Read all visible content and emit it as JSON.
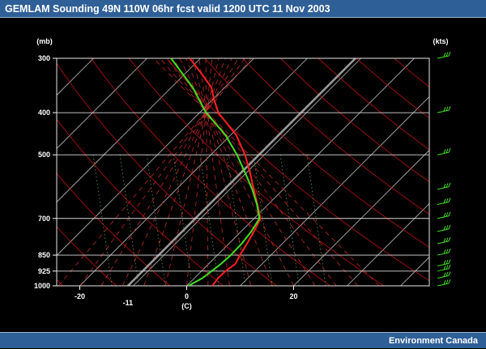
{
  "header": {
    "title": "GEMLAM Sounding 49N 110W 06hr fcst valid 1200 UTC  11 Nov 2003"
  },
  "footer": {
    "credit": "Environment Canada"
  },
  "chart_data": {
    "type": "line",
    "chart_kind": "skew-T log-p thermodynamic diagram",
    "title": "GEMLAM Sounding 49N 110W 06hr fcst valid 1200 UTC  11 Nov 2003",
    "y_axis": {
      "unit": "(mb)",
      "scale": "log",
      "ylim": [
        1000,
        300
      ],
      "tick_labels": [
        "300",
        "400",
        "500",
        "700",
        "850",
        "925",
        "1000"
      ]
    },
    "x_axis": {
      "unit": "(C)",
      "tick_labels": [
        "-20",
        "0",
        "20"
      ],
      "highlight_label": "-11",
      "highlight_value": -11
    },
    "wind_axis_unit": "(kts)",
    "series": [
      {
        "color": "#ff2020",
        "points": [
          [
            1000,
            4.8
          ],
          [
            960,
            4.4
          ],
          [
            925,
            4.5
          ],
          [
            890,
            5.0
          ],
          [
            850,
            4.2
          ],
          [
            800,
            3.4
          ],
          [
            750,
            2.4
          ],
          [
            700,
            1.2
          ],
          [
            650,
            -2.0
          ],
          [
            600,
            -5.5
          ],
          [
            550,
            -9.3
          ],
          [
            500,
            -13.6
          ],
          [
            450,
            -19.0
          ],
          [
            400,
            -26.5
          ],
          [
            375,
            -29.5
          ],
          [
            350,
            -32.5
          ],
          [
            325,
            -37.0
          ],
          [
            300,
            -42.0
          ]
        ]
      },
      {
        "color": "#40e020",
        "points": [
          [
            1000,
            0.3
          ],
          [
            960,
            1.5
          ],
          [
            925,
            1.9
          ],
          [
            890,
            2.3
          ],
          [
            850,
            2.5
          ],
          [
            800,
            2.4
          ],
          [
            750,
            1.9
          ],
          [
            700,
            1.0
          ],
          [
            650,
            -2.1
          ],
          [
            600,
            -5.8
          ],
          [
            550,
            -10.2
          ],
          [
            500,
            -15.1
          ],
          [
            450,
            -21.0
          ],
          [
            400,
            -28.8
          ],
          [
            350,
            -36.0
          ],
          [
            300,
            -45.5
          ]
        ]
      }
    ],
    "highlight_isotherm_C": -11,
    "grid": true,
    "wind_barbs": {
      "color": "#40e020",
      "levels_mb": [
        300,
        400,
        500,
        600,
        650,
        700,
        750,
        800,
        850,
        900,
        925,
        960,
        1000
      ]
    }
  }
}
